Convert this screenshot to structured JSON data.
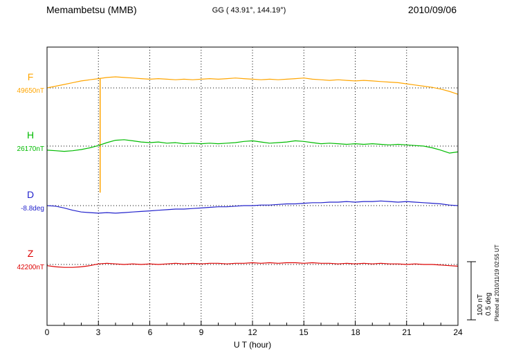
{
  "header": {
    "station": "Memambetsu (MMB)",
    "coords": "GG ( 43.91°, 144.19°)",
    "date": "2010/09/06"
  },
  "axis": {
    "xlabel": "U T (hour)",
    "x_min": 0,
    "x_max": 24,
    "ticks": [
      0,
      3,
      6,
      9,
      12,
      15,
      18,
      21,
      24
    ],
    "tick_labels": [
      "0",
      "3",
      "6",
      "9",
      "12",
      "15",
      "18",
      "21",
      "24"
    ]
  },
  "scale_bar": {
    "labels": [
      "100 nT",
      "0.5 deg"
    ]
  },
  "footer": {
    "plotted_at": "Plotted at 2010/11/19 02:55 UT"
  },
  "chart_data": {
    "type": "line",
    "title": "Memambetsu (MMB) magnetogram 2010/09/06",
    "xlabel": "U T (hour)",
    "x_hours_step": 0.5,
    "x_range": [
      0,
      24
    ],
    "grid": "dotted vertical every 3 h, dotted horizontal baseline per component",
    "scale": {
      "nT_per_div": 100,
      "deg_per_div": 0.5
    },
    "series": [
      {
        "name": "F",
        "unit": "nT",
        "baseline_label": "49650nT",
        "baseline_value": 49650,
        "color": "#FFA500",
        "offsets": [
          0,
          3,
          6,
          9,
          12,
          14,
          16,
          18,
          19,
          18,
          17,
          16,
          15,
          16,
          15,
          14,
          15,
          14,
          15,
          16,
          15,
          16,
          17,
          16,
          15,
          14,
          15,
          14,
          15,
          16,
          17,
          15,
          14,
          13,
          14,
          13,
          12,
          13,
          12,
          11,
          10,
          9,
          7,
          5,
          3,
          1,
          -2,
          -6,
          -11
        ],
        "spike": {
          "hour": 3.1,
          "from": 17,
          "to": -180
        }
      },
      {
        "name": "H",
        "unit": "nT",
        "baseline_label": "26170nT",
        "baseline_value": 26170,
        "color": "#00BB00",
        "offsets": [
          -7,
          -8,
          -9,
          -8,
          -6,
          -3,
          1,
          6,
          10,
          11,
          9,
          7,
          6,
          7,
          5,
          6,
          4,
          5,
          4,
          5,
          4,
          5,
          6,
          8,
          9,
          7,
          5,
          6,
          7,
          9,
          8,
          6,
          4,
          5,
          4,
          3,
          4,
          3,
          4,
          3,
          2,
          3,
          2,
          1,
          0,
          -3,
          -7,
          -12,
          -10
        ]
      },
      {
        "name": "D",
        "unit": "deg",
        "baseline_label": "-8.8deg",
        "baseline_value": -8.8,
        "color": "#2222CC",
        "offsets": [
          0,
          -0.005,
          -0.02,
          -0.04,
          -0.055,
          -0.06,
          -0.065,
          -0.06,
          -0.065,
          -0.06,
          -0.055,
          -0.05,
          -0.045,
          -0.04,
          -0.035,
          -0.03,
          -0.03,
          -0.025,
          -0.02,
          -0.015,
          -0.01,
          -0.01,
          -0.005,
          0,
          0,
          0.005,
          0.005,
          0.01,
          0.015,
          0.015,
          0.02,
          0.025,
          0.025,
          0.03,
          0.03,
          0.035,
          0.03,
          0.035,
          0.035,
          0.04,
          0.035,
          0.03,
          0.035,
          0.03,
          0.025,
          0.02,
          0.015,
          0.005,
          0
        ]
      },
      {
        "name": "Z",
        "unit": "nT",
        "baseline_label": "42200nT",
        "baseline_value": 42200,
        "color": "#DD0000",
        "offsets": [
          -2,
          -4,
          -5,
          -5,
          -4,
          -2,
          1,
          2,
          1,
          0,
          1,
          0,
          1,
          0,
          1,
          2,
          1,
          2,
          1,
          2,
          2,
          1,
          2,
          2,
          3,
          2,
          3,
          2,
          3,
          3,
          2,
          3,
          2,
          2,
          1,
          2,
          1,
          2,
          1,
          2,
          1,
          1,
          0,
          1,
          0,
          0,
          -1,
          -2,
          -3
        ]
      }
    ]
  }
}
